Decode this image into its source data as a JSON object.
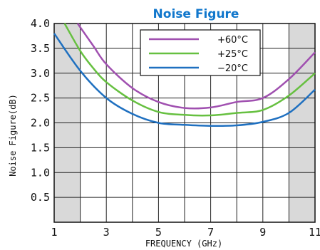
{
  "chart_data": {
    "type": "line",
    "title": "Noise Figure",
    "xlabel": "FREQUENCY (GHz)",
    "ylabel": "Noise Figure(dB)",
    "xlim": [
      1,
      11
    ],
    "ylim": [
      0,
      4.0
    ],
    "x_ticks": [
      1,
      3,
      5,
      7,
      9,
      11
    ],
    "y_ticks": [
      0.5,
      1.0,
      1.5,
      2.0,
      2.5,
      3.0,
      3.5,
      4.0
    ],
    "x_tick_labels": [
      "1",
      "3",
      "5",
      "7",
      "9",
      "11"
    ],
    "y_tick_labels": [
      "0.5",
      "1.0",
      "1.5",
      "2.0",
      "2.5",
      "3.0",
      "3.5",
      "4.0"
    ],
    "grid": true,
    "legend_position": "top-center",
    "shaded_x_ranges": [
      [
        1,
        2
      ],
      [
        10,
        11
      ]
    ],
    "series": [
      {
        "name": "+60°C",
        "color": "#a050b0",
        "x": [
          1.9,
          2.5,
          3,
          4,
          5,
          6,
          7,
          8,
          9,
          10,
          11
        ],
        "y": [
          4.0,
          3.55,
          3.18,
          2.7,
          2.42,
          2.3,
          2.31,
          2.42,
          2.5,
          2.88,
          3.42
        ]
      },
      {
        "name": "+25°C",
        "color": "#66c040",
        "x": [
          1.4,
          2,
          2.5,
          3,
          4,
          5,
          6,
          7,
          8,
          9,
          10,
          11
        ],
        "y": [
          4.0,
          3.45,
          3.1,
          2.82,
          2.45,
          2.22,
          2.16,
          2.15,
          2.2,
          2.26,
          2.55,
          3.0
        ]
      },
      {
        "name": "−20°C",
        "color": "#1f70c0",
        "x": [
          1,
          2,
          3,
          4,
          5,
          6,
          7,
          8,
          9,
          10,
          11
        ],
        "y": [
          3.8,
          3.05,
          2.5,
          2.18,
          2.0,
          1.96,
          1.94,
          1.95,
          2.02,
          2.2,
          2.67
        ]
      }
    ]
  }
}
